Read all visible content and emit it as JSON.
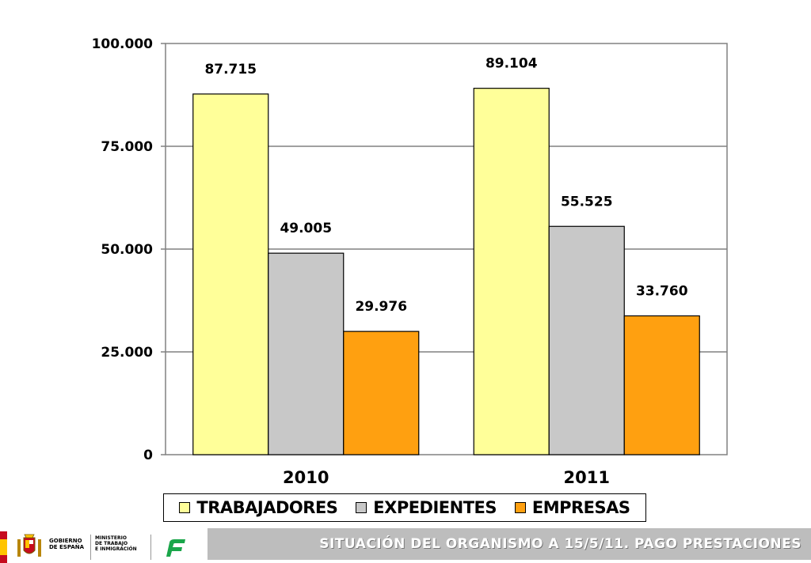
{
  "chart_data": {
    "type": "bar",
    "categories": [
      "2010",
      "2011"
    ],
    "series": [
      {
        "name": "TRABAJADORES",
        "values": [
          87715,
          89104
        ],
        "labels": [
          "87.715",
          "89.104"
        ],
        "color": "#ffff99"
      },
      {
        "name": "EXPEDIENTES",
        "values": [
          49005,
          55525
        ],
        "labels": [
          "49.005",
          "55.525"
        ],
        "color": "#c8c8c8"
      },
      {
        "name": "EMPRESAS",
        "values": [
          29976,
          33760
        ],
        "labels": [
          "29.976",
          "33.760"
        ],
        "color": "#ffa010"
      }
    ],
    "yticks": [
      0,
      25000,
      50000,
      75000,
      100000
    ],
    "ytick_labels": [
      "0",
      "25.000",
      "50.000",
      "75.000",
      "100.000"
    ],
    "ylim": [
      0,
      100000
    ],
    "grid": true,
    "legend_position": "bottom"
  },
  "footer": {
    "title": "SITUACIÓN DEL ORGANISMO A 15/5/11. PAGO PRESTACIONES",
    "logo_gobierno_lines": [
      "GOBIERNO",
      "DE ESPAÑA"
    ],
    "logo_ministerio_lines": [
      "MINISTERIO",
      "DE TRABAJO",
      "E INMIGRACIÓN"
    ]
  }
}
